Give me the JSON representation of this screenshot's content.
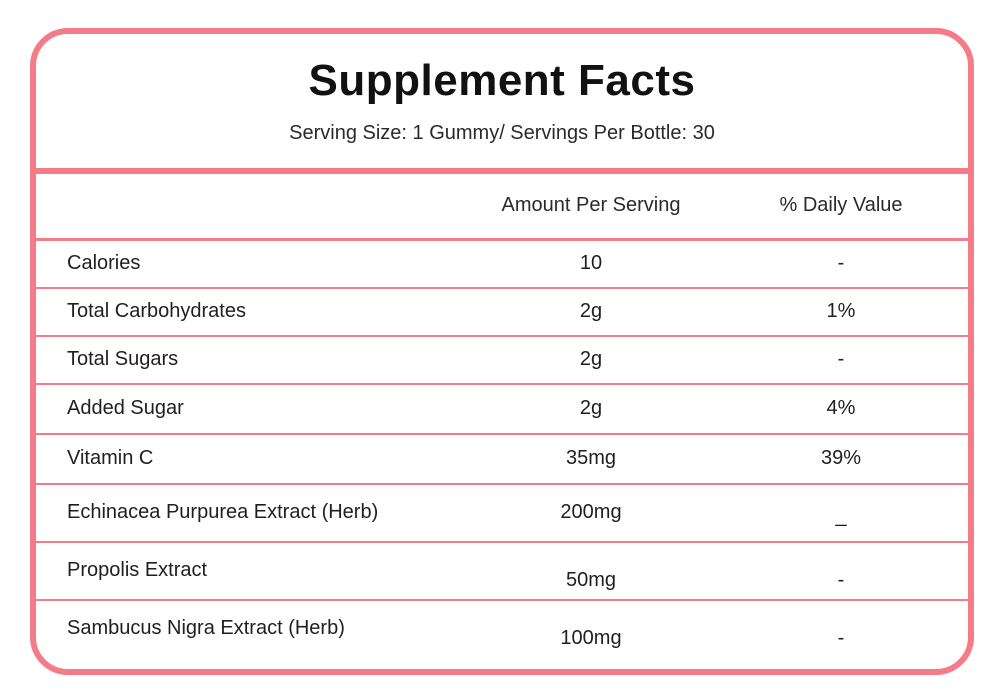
{
  "header": {
    "title": "Supplement Facts",
    "subtitle": "Serving Size: 1 Gummy/ Servings Per Bottle: 30"
  },
  "columns": {
    "amount": "Amount Per Serving",
    "daily_value": "% Daily Value"
  },
  "rows": [
    {
      "name": "Calories",
      "amount": "10",
      "dv": "-"
    },
    {
      "name": "Total Carbohydrates",
      "amount": "2g",
      "dv": "1%"
    },
    {
      "name": "Total Sugars",
      "amount": "2g",
      "dv": "-"
    },
    {
      "name": "Added Sugar",
      "amount": "2g",
      "dv": "4%"
    },
    {
      "name": "Vitamin C",
      "amount": "35mg",
      "dv": "39%"
    },
    {
      "name": "Echinacea Purpurea Extract (Herb)",
      "amount": "200mg",
      "dv": "_"
    },
    {
      "name": "Propolis Extract",
      "amount": "50mg",
      "dv": "-"
    },
    {
      "name": "Sambucus Nigra Extract (Herb)",
      "amount": "100mg",
      "dv": "-"
    }
  ],
  "colors": {
    "accent": "#f47c89",
    "text": "#1a1a1a"
  }
}
